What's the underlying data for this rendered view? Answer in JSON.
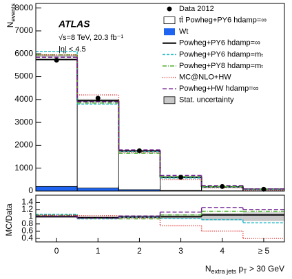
{
  "chart_data": [
    {
      "type": "step",
      "y_label": [
        {
          "text": "N"
        },
        {
          "text": "events",
          "sub": true
        }
      ],
      "annotations": [
        "ATLAS",
        "√s=8 TeV, 20.3 fb⁻¹",
        "|η| < 4.5"
      ],
      "ylim": [
        0,
        8200
      ],
      "yticks": [
        0,
        1000,
        2000,
        3000,
        4000,
        5000,
        6000,
        7000,
        8000
      ],
      "legend": "top-right",
      "series": [
        {
          "name": "Data 2012",
          "kind": "points",
          "color": "#000000",
          "values": [
            5720,
            4060,
            1760,
            600,
            200,
            80
          ]
        },
        {
          "name": "tt̄ Powheg+PY6 hdamp=∞",
          "kind": "stack",
          "color": "#ffffff",
          "values": [
            5700,
            3840,
            1690,
            585,
            180,
            85
          ]
        },
        {
          "name": "Wt",
          "kind": "stack",
          "color": "#1e64f0",
          "values": [
            200,
            130,
            60,
            25,
            10,
            5
          ]
        },
        {
          "name": "Powheg+PY6 hdamp=∞",
          "kind": "step",
          "color": "#000000",
          "dash": "none",
          "values": [
            5750,
            3950,
            1750,
            600,
            180,
            80
          ]
        },
        {
          "name": "Powheg+PY6 hdamp=mₜ",
          "kind": "step",
          "color": "#22b8c8",
          "dash": "4,2",
          "values": [
            6100,
            3800,
            1720,
            570,
            170,
            65
          ]
        },
        {
          "name": "Powheg+PY8 hdamp=mₜ",
          "kind": "step",
          "color": "#50b030",
          "dash": "6,2,1,2",
          "values": [
            5950,
            3850,
            1650,
            630,
            200,
            85
          ]
        },
        {
          "name": "MC@NLO+HW",
          "kind": "step",
          "color": "#e02020",
          "dash": "1,2",
          "values": [
            5950,
            4200,
            1700,
            500,
            140,
            35
          ]
        },
        {
          "name": "Powheg+HW hdamp=∞",
          "kind": "step",
          "color": "#702090",
          "dash": "6,3",
          "values": [
            5850,
            3900,
            1800,
            680,
            240,
            95
          ]
        },
        {
          "name": "Stat. uncertainty",
          "kind": "band",
          "color": "#c8c8c8",
          "values": [
            60,
            60,
            40,
            25,
            15,
            10
          ]
        }
      ]
    },
    {
      "type": "step",
      "y_label": "MC/Data",
      "categories": [
        "0",
        "1",
        "2",
        "3",
        "4",
        "≥ 5"
      ],
      "x_label": [
        {
          "text": "N"
        },
        {
          "text": "extra jets",
          "sub": true
        },
        {
          "text": " p"
        },
        {
          "text": "T",
          "sub": true
        },
        {
          "text": " > 30 GeV"
        }
      ],
      "ylim": [
        0.3,
        1.6
      ],
      "yticks": [
        0.4,
        0.6,
        0.8,
        1,
        1.2,
        1.4
      ],
      "band": {
        "color": "#c8c8c8",
        "center": 1,
        "values": [
          0.02,
          0.03,
          0.04,
          0.06,
          0.1,
          0.12
        ]
      },
      "series": [
        {
          "color": "#000000",
          "dash": "none",
          "values": [
            1.0,
            0.97,
            0.99,
            1.0,
            1.05,
            1.05
          ]
        },
        {
          "color": "#22b8c8",
          "dash": "4,2",
          "values": [
            1.07,
            0.94,
            0.98,
            0.95,
            0.92,
            0.83
          ]
        },
        {
          "color": "#50b030",
          "dash": "6,2,1,2",
          "values": [
            1.04,
            0.95,
            0.94,
            1.05,
            1.15,
            1.15
          ]
        },
        {
          "color": "#e02020",
          "dash": "1,2",
          "values": [
            1.04,
            1.03,
            0.97,
            0.75,
            0.6,
            0.4
          ]
        },
        {
          "color": "#702090",
          "dash": "6,3",
          "values": [
            1.02,
            0.96,
            1.02,
            1.13,
            1.25,
            1.2
          ]
        }
      ]
    }
  ]
}
